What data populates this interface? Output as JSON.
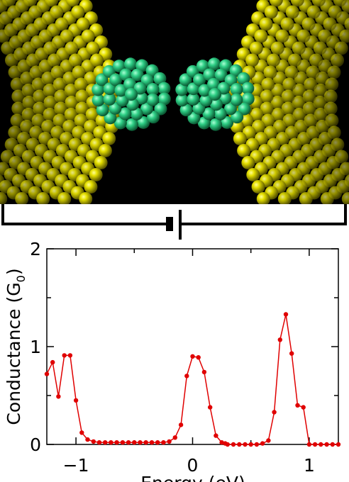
{
  "chart_data": {
    "type": "line",
    "xlabel": "Energy (eV)",
    "ylabel": "Conductance (G",
    "ylabel_sub": "0",
    "ylabel_close": ")",
    "xlim": [
      -1.25,
      1.25
    ],
    "ylim": [
      0,
      2
    ],
    "xticks": [
      {
        "v": -1,
        "label": "−1"
      },
      {
        "v": 0,
        "label": "0"
      },
      {
        "v": 1,
        "label": "1"
      }
    ],
    "yticks": [
      {
        "v": 0,
        "label": "0"
      },
      {
        "v": 1,
        "label": "1"
      },
      {
        "v": 2,
        "label": "2"
      }
    ],
    "grid": false,
    "series": [
      {
        "color": "#e00000",
        "x": [
          -1.25,
          -1.2,
          -1.15,
          -1.1,
          -1.05,
          -1.0,
          -0.95,
          -0.9,
          -0.85,
          -0.8,
          -0.75,
          -0.7,
          -0.65,
          -0.6,
          -0.55,
          -0.5,
          -0.45,
          -0.4,
          -0.35,
          -0.3,
          -0.25,
          -0.2,
          -0.15,
          -0.1,
          -0.05,
          0.0,
          0.05,
          0.1,
          0.15,
          0.2,
          0.25,
          0.28,
          0.3,
          0.35,
          0.4,
          0.45,
          0.5,
          0.55,
          0.6,
          0.65,
          0.7,
          0.75,
          0.8,
          0.85,
          0.9,
          0.95,
          1.0,
          1.05,
          1.1,
          1.15,
          1.2,
          1.25
        ],
        "y": [
          0.72,
          0.84,
          0.49,
          0.91,
          0.91,
          0.45,
          0.12,
          0.05,
          0.03,
          0.02,
          0.02,
          0.02,
          0.02,
          0.02,
          0.02,
          0.02,
          0.02,
          0.02,
          0.02,
          0.02,
          0.02,
          0.03,
          0.07,
          0.2,
          0.7,
          0.9,
          0.89,
          0.74,
          0.38,
          0.09,
          0.02,
          0.01,
          0.0,
          0.0,
          0.0,
          0.0,
          0.0,
          0.0,
          0.01,
          0.04,
          0.33,
          1.07,
          1.33,
          0.93,
          0.4,
          0.38,
          0.0,
          0.0,
          0.0,
          0.0,
          0.0,
          0.0
        ]
      }
    ]
  },
  "molecule": {
    "gold_color": "#d8d400",
    "cluster_color": "#2fcf86",
    "background": "#000000"
  }
}
